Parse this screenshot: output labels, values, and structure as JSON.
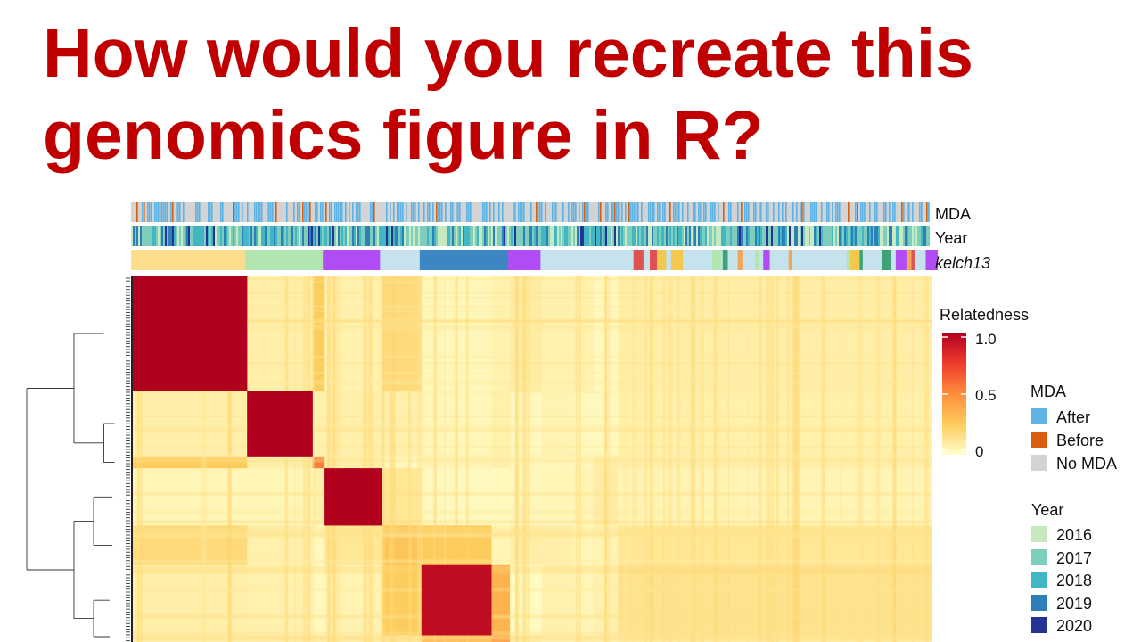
{
  "headline": {
    "line1": "How would you recreate this",
    "line2": "genomics figure in R?"
  },
  "annotation_tracks": {
    "mda_label": "MDA",
    "year_label": "Year",
    "kelch13_label": "kelch13"
  },
  "colorbar": {
    "title": "Relatedness",
    "ticks": [
      "1.0",
      "0.5",
      "0"
    ],
    "colors": [
      "#b2001f",
      "#ef3b2c",
      "#fd8d3c",
      "#fecc5c",
      "#ffffcc"
    ]
  },
  "legend_mda": {
    "title": "MDA",
    "items": [
      {
        "label": "After",
        "color": "#5db3e6"
      },
      {
        "label": "Before",
        "color": "#d95f0e"
      },
      {
        "label": "No MDA",
        "color": "#d3d3d3"
      }
    ]
  },
  "legend_year": {
    "title": "Year",
    "items": [
      {
        "label": "2016",
        "color": "#c7e9c0"
      },
      {
        "label": "2017",
        "color": "#7fcdbb"
      },
      {
        "label": "2018",
        "color": "#41b6c4"
      },
      {
        "label": "2019",
        "color": "#2c7fb8"
      },
      {
        "label": "2020",
        "color": "#253494"
      }
    ]
  },
  "chart_data": {
    "type": "heatmap",
    "value_name": "Relatedness",
    "value_range": [
      0,
      1
    ],
    "clusters": [
      {
        "size": 6.2,
        "within": 1.0,
        "kelch13_color": "#fddc8c"
      },
      {
        "size": 3.55,
        "within": 1.0,
        "kelch13_color": "#b2e6b0"
      },
      {
        "size": 0.65,
        "within": 0.55,
        "kelch13_color": "#b2e6b0"
      },
      {
        "size": 3.1,
        "within": 1.0,
        "kelch13_color": "#b24df5"
      },
      {
        "size": 2.15,
        "within": 0.28,
        "kelch13_color": "#c6e2ec"
      },
      {
        "size": 3.8,
        "within": 0.95,
        "kelch13_color": "#3d86c4"
      },
      {
        "size": 1.0,
        "within": 0.5,
        "kelch13_color": "#3d86c4"
      },
      {
        "size": 1.75,
        "within": 1.0,
        "kelch13_color": "#b24df5"
      },
      {
        "size": 1.7,
        "within": 1.0,
        "kelch13_color": "#c6e2ec"
      },
      {
        "size": 1.05,
        "within": 1.0,
        "kelch13_color": "#c6e2ec"
      },
      {
        "size": 1.35,
        "within": 1.0,
        "kelch13_color": "#c6e2ec"
      },
      {
        "size": 17.0,
        "within": 0.12,
        "kelch13_color": "#c6e2ec"
      }
    ]
  }
}
